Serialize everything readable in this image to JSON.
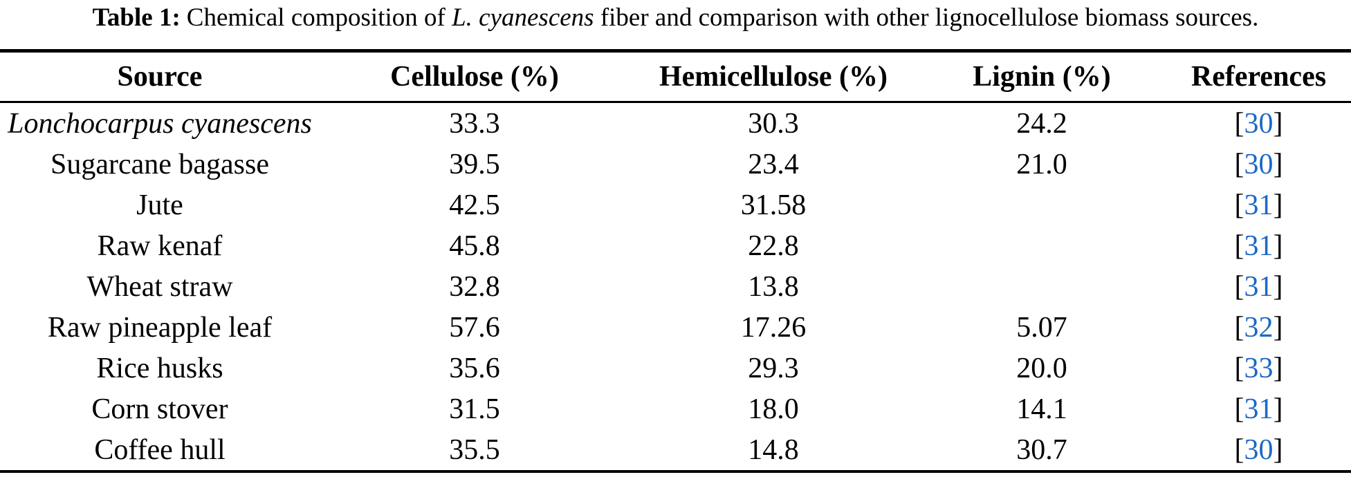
{
  "caption": {
    "label": "Table 1:",
    "text_before_species": "Chemical composition of",
    "species": "L. cyanescens",
    "text_after_species": "fiber and comparison with other lignocellulose biomass sources."
  },
  "table": {
    "columns": [
      "Source",
      "Cellulose (%)",
      "Hemicellulose (%)",
      "Lignin (%)",
      "References"
    ],
    "rows": [
      {
        "source": "Lonchocarpus cyanescens",
        "italic": true,
        "cellulose": "33.3",
        "hemicellulose": "30.3",
        "lignin": "24.2",
        "reference": "[30]"
      },
      {
        "source": "Sugarcane bagasse",
        "italic": false,
        "cellulose": "39.5",
        "hemicellulose": "23.4",
        "lignin": "21.0",
        "reference": "[30]"
      },
      {
        "source": "Jute",
        "italic": false,
        "cellulose": "42.5",
        "hemicellulose": "31.58",
        "lignin": "",
        "reference": "[31]"
      },
      {
        "source": "Raw kenaf",
        "italic": false,
        "cellulose": "45.8",
        "hemicellulose": "22.8",
        "lignin": "",
        "reference": "[31]"
      },
      {
        "source": "Wheat straw",
        "italic": false,
        "cellulose": "32.8",
        "hemicellulose": "13.8",
        "lignin": "",
        "reference": "[31]"
      },
      {
        "source": "Raw pineapple leaf",
        "italic": false,
        "cellulose": "57.6",
        "hemicellulose": "17.26",
        "lignin": "5.07",
        "reference": "[32]"
      },
      {
        "source": "Rice husks",
        "italic": false,
        "cellulose": "35.6",
        "hemicellulose": "29.3",
        "lignin": "20.0",
        "reference": "[33]"
      },
      {
        "source": "Corn stover",
        "italic": false,
        "cellulose": "31.5",
        "hemicellulose": "18.0",
        "lignin": "14.1",
        "reference": "[31]"
      },
      {
        "source": "Coffee hull",
        "italic": false,
        "cellulose": "35.5",
        "hemicellulose": "14.8",
        "lignin": "30.7",
        "reference": "[30]"
      }
    ]
  },
  "colors": {
    "reference_link_blue": "#1b69c7",
    "text_black": "#000000",
    "background": "#ffffff"
  }
}
